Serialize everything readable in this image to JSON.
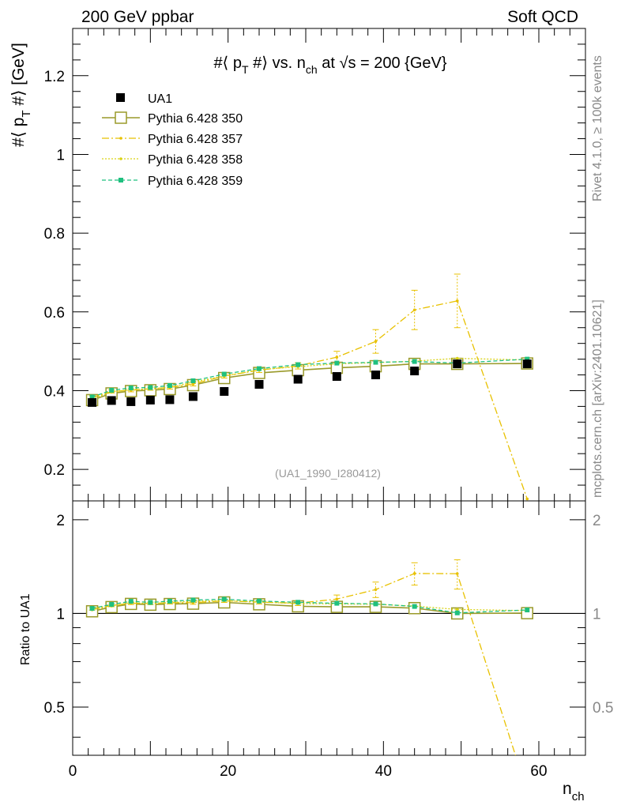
{
  "header": {
    "left": "200 GeV ppbar",
    "right": "Soft QCD"
  },
  "side_texts": {
    "rivet": "Rivet 4.1.0, ≥ 100k events",
    "mcplots": "mcplots.cern.ch [arXiv:2401.10621]"
  },
  "colors": {
    "data": "#000000",
    "p350": "#9a9a2a",
    "p357": "#e8c100",
    "p358": "#d9d215",
    "p359": "#1fc07f"
  },
  "chart_data": {
    "type": "scatter",
    "title": "#⟨ p_T #⟩ vs. n_ch at √s = 200 {GeV}",
    "title_parts": {
      "prefix": "#⟨ p",
      "sub_t": "T",
      "middle": " #⟩ vs. n",
      "sub_ch": "ch",
      "suffix": " at √s = 200 {GeV}"
    },
    "ylabel": "#⟨ p_T #⟩ [GeV]",
    "ylabel_parts": {
      "prefix": "#⟨ p",
      "sub": "T",
      "suffix": " #⟩ [GeV]"
    },
    "xlabel": "n_ch",
    "xlabel_parts": {
      "base": "n",
      "sub": "ch"
    },
    "ratio_ylabel": "Ratio to UA1",
    "analysis_id": "(UA1_1990_I280412)",
    "xlim": [
      0,
      66
    ],
    "ylim": [
      0.12,
      1.32
    ],
    "ratio_ylim": [
      0.35,
      2.3
    ],
    "x_ticks": [
      "0",
      "20",
      "40",
      "60"
    ],
    "x_tick_values": [
      0,
      20,
      40,
      60
    ],
    "y_ticks": [
      "0.2",
      "0.4",
      "0.6",
      "0.8",
      "1",
      "1.2"
    ],
    "y_tick_values": [
      0.2,
      0.4,
      0.6,
      0.8,
      1.0,
      1.2
    ],
    "ratio_ticks": [
      "0.5",
      "1",
      "2"
    ],
    "ratio_tick_values": [
      0.5,
      1,
      2
    ],
    "x": [
      2.5,
      5,
      7.5,
      10,
      12.5,
      15.5,
      19.5,
      24,
      29,
      34,
      39,
      44,
      49.5,
      58.5
    ],
    "series": [
      {
        "name": "UA1",
        "key": "data",
        "values": [
          0.37,
          0.375,
          0.372,
          0.376,
          0.377,
          0.385,
          0.398,
          0.416,
          0.429,
          0.436,
          0.44,
          0.45,
          0.468,
          0.468
        ]
      },
      {
        "name": "Pythia 6.428 350",
        "key": "p350",
        "values": [
          0.376,
          0.393,
          0.399,
          0.401,
          0.404,
          0.414,
          0.432,
          0.445,
          0.452,
          0.458,
          0.462,
          0.468,
          0.468,
          0.469
        ]
      },
      {
        "name": "Pythia 6.428 357",
        "key": "p357",
        "values": [
          0.383,
          0.398,
          0.401,
          0.405,
          0.408,
          0.417,
          0.437,
          0.452,
          0.463,
          0.485,
          0.525,
          0.605,
          0.628,
          0.125
        ],
        "errors": [
          0.004,
          0.004,
          0.004,
          0.004,
          0.004,
          0.005,
          0.005,
          0.006,
          0.008,
          0.015,
          0.03,
          0.05,
          0.068,
          0.0
        ]
      },
      {
        "name": "Pythia 6.428 358",
        "key": "p358",
        "values": [
          0.38,
          0.396,
          0.403,
          0.404,
          0.408,
          0.422,
          0.437,
          0.453,
          0.461,
          0.468,
          0.471,
          0.475,
          0.482,
          0.478
        ]
      },
      {
        "name": "Pythia 6.428 359",
        "key": "p359",
        "values": [
          0.384,
          0.401,
          0.407,
          0.408,
          0.413,
          0.425,
          0.442,
          0.456,
          0.466,
          0.47,
          0.472,
          0.474,
          0.47,
          0.48
        ]
      }
    ],
    "ratio_series": [
      {
        "key": "p350",
        "values": [
          1.016,
          1.048,
          1.073,
          1.067,
          1.072,
          1.075,
          1.085,
          1.07,
          1.054,
          1.05,
          1.05,
          1.04,
          1.0,
          1.002
        ]
      },
      {
        "key": "p357",
        "values": [
          1.035,
          1.061,
          1.078,
          1.077,
          1.082,
          1.083,
          1.098,
          1.087,
          1.079,
          1.112,
          1.193,
          1.344,
          1.342,
          0.267
        ],
        "errors": [
          0.01,
          0.01,
          0.01,
          0.01,
          0.01,
          0.013,
          0.013,
          0.015,
          0.019,
          0.034,
          0.068,
          0.111,
          0.145,
          0.0
        ]
      },
      {
        "key": "p358",
        "values": [
          1.027,
          1.056,
          1.083,
          1.074,
          1.082,
          1.096,
          1.098,
          1.089,
          1.075,
          1.073,
          1.07,
          1.056,
          1.03,
          1.021
        ]
      },
      {
        "key": "p359",
        "values": [
          1.038,
          1.069,
          1.094,
          1.085,
          1.095,
          1.104,
          1.111,
          1.096,
          1.086,
          1.078,
          1.073,
          1.053,
          1.004,
          1.026
        ]
      }
    ]
  }
}
